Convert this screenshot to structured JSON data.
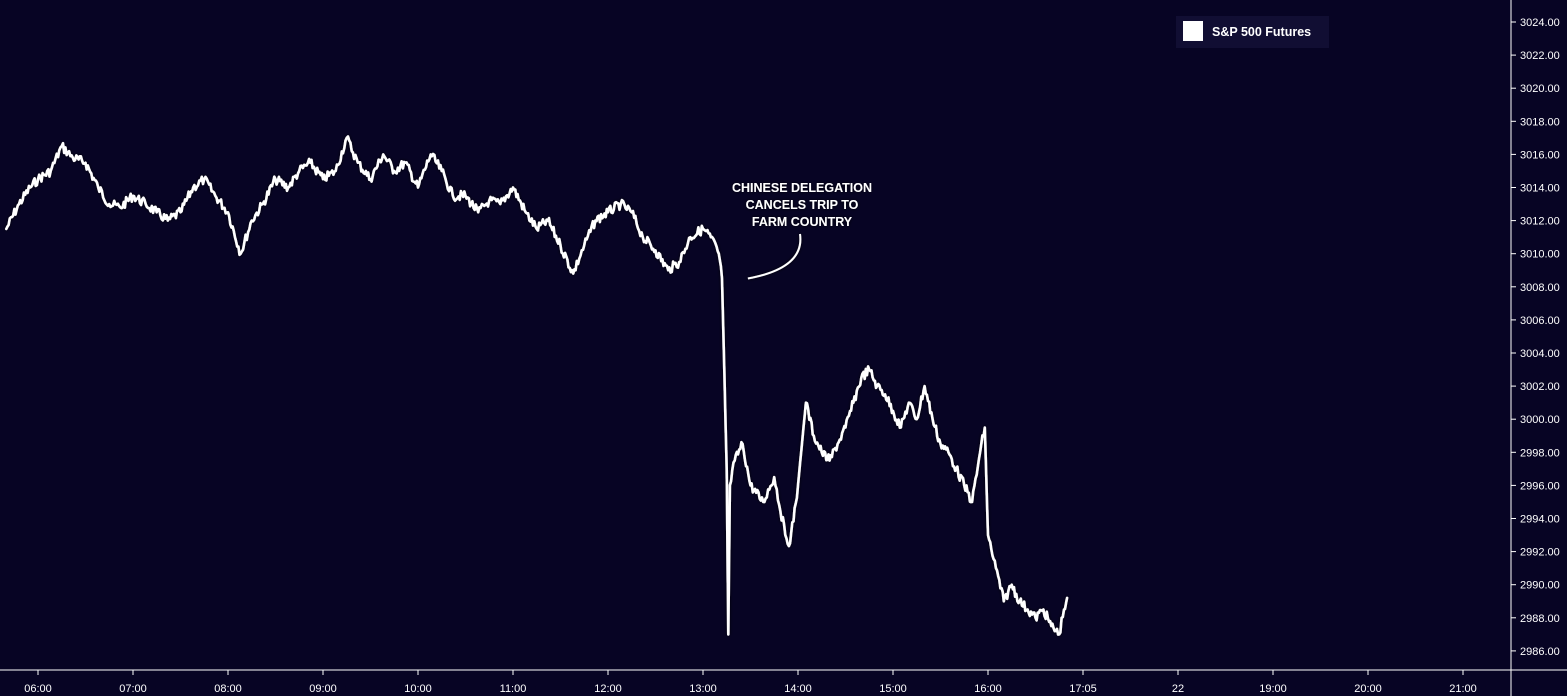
{
  "chart_data": {
    "type": "line",
    "title": "",
    "xlabel": "",
    "ylabel": "",
    "ylim": [
      2985,
      3025
    ],
    "grid": false,
    "legend_position": "top-right",
    "x_tick_labels": [
      "06:00",
      "07:00",
      "08:00",
      "09:00",
      "10:00",
      "11:00",
      "12:00",
      "13:00",
      "14:00",
      "15:00",
      "16:00",
      "17:05",
      "22",
      "19:00",
      "20:00",
      "21:00"
    ],
    "y_tick_labels": [
      "3024.00",
      "3022.00",
      "3020.00",
      "3018.00",
      "3016.00",
      "3014.00",
      "3012.00",
      "3010.00",
      "3008.00",
      "3006.00",
      "3004.00",
      "3002.00",
      "3000.00",
      "2998.00",
      "2996.00",
      "2994.00",
      "2992.00",
      "2990.00",
      "2988.00",
      "2986.00"
    ],
    "series": [
      {
        "name": "S&P 500 Futures",
        "color": "#ffffff",
        "x": [
          "05:40",
          "05:48",
          "05:55",
          "06:00",
          "06:08",
          "06:15",
          "06:22",
          "06:30",
          "06:38",
          "06:45",
          "06:52",
          "07:00",
          "07:08",
          "07:15",
          "07:22",
          "07:30",
          "07:38",
          "07:45",
          "07:52",
          "08:00",
          "08:08",
          "08:15",
          "08:22",
          "08:30",
          "08:38",
          "08:45",
          "08:52",
          "09:00",
          "09:08",
          "09:15",
          "09:22",
          "09:30",
          "09:38",
          "09:45",
          "09:52",
          "10:00",
          "10:08",
          "10:15",
          "10:22",
          "10:30",
          "10:38",
          "10:45",
          "10:52",
          "11:00",
          "11:08",
          "11:15",
          "11:22",
          "11:30",
          "11:38",
          "11:45",
          "11:52",
          "12:00",
          "12:08",
          "12:15",
          "12:22",
          "12:30",
          "12:38",
          "12:45",
          "12:52",
          "13:00",
          "13:05",
          "13:10",
          "13:12",
          "13:15",
          "13:16",
          "13:17",
          "13:20",
          "13:25",
          "13:30",
          "13:38",
          "13:45",
          "13:52",
          "13:55",
          "14:00",
          "14:05",
          "14:10",
          "14:15",
          "14:20",
          "14:25",
          "14:30",
          "14:35",
          "14:40",
          "14:45",
          "14:50",
          "14:55",
          "15:00",
          "15:05",
          "15:10",
          "15:15",
          "15:20",
          "15:25",
          "15:30",
          "15:35",
          "15:40",
          "15:45",
          "15:50",
          "15:55",
          "15:58",
          "16:00",
          "16:05",
          "16:10",
          "16:15",
          "16:20",
          "16:25",
          "16:30",
          "16:35",
          "16:40",
          "16:45",
          "16:48",
          "16:50"
        ],
        "values": [
          3011.5,
          3013,
          3014,
          3014.5,
          3015,
          3016.5,
          3015.8,
          3015.5,
          3014,
          3013,
          3012.8,
          3013.5,
          3013,
          3012.5,
          3012,
          3012.5,
          3014,
          3014.5,
          3013.5,
          3012.5,
          3010,
          3012,
          3013,
          3014.5,
          3014,
          3015,
          3015.5,
          3014.5,
          3015,
          3017,
          3015.5,
          3014.5,
          3016,
          3015,
          3015.5,
          3014,
          3016,
          3015,
          3013.5,
          3013.5,
          3012.5,
          3013.2,
          3013,
          3014,
          3012.5,
          3011.5,
          3012,
          3010.5,
          3008.8,
          3010.5,
          3012,
          3012.5,
          3013,
          3012.5,
          3011,
          3010.2,
          3009,
          3009.5,
          3011,
          3011.5,
          3011,
          3010,
          3008.5,
          2997,
          2987,
          2996,
          2997.5,
          2998.5,
          2996,
          2995,
          2996.5,
          2993,
          2992.5,
          2996,
          3001,
          2999,
          2998,
          2997.5,
          2998.5,
          2999.5,
          3001,
          3002.5,
          3003,
          3002,
          3001.5,
          3000.5,
          2999.5,
          3001,
          3000,
          3002,
          3000,
          2998.5,
          2998,
          2997,
          2996,
          2995,
          2998,
          2999.5,
          2993,
          2991,
          2989,
          2990,
          2989,
          2988.5,
          2988,
          2988.5,
          2987.5,
          2987,
          2988.5,
          2989.2
        ]
      }
    ],
    "annotations": [
      {
        "lines": [
          "CHINESE DELEGATION",
          "CANCELS TRIP TO",
          "FARM COUNTRY"
        ],
        "points_to": {
          "x": "13:17",
          "y": 3008.5
        }
      }
    ]
  }
}
